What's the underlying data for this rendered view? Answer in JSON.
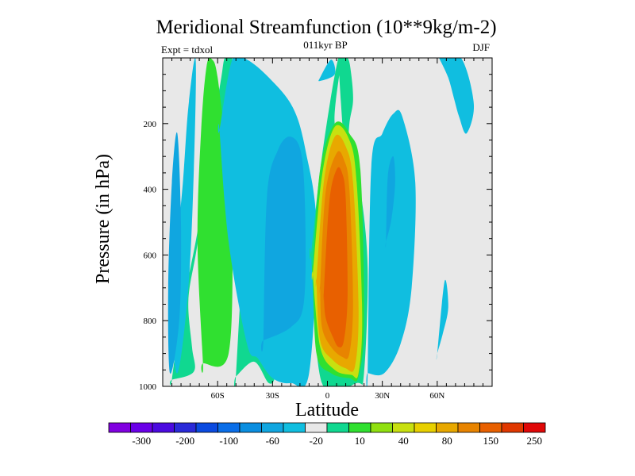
{
  "chart_data": {
    "type": "heatmap",
    "title": "Meridional Streamfunction (10**9kg/m-2)",
    "subtitle_center": "011kyr BP",
    "subtitle_left": "Expt = tdxol",
    "subtitle_right": "DJF",
    "xlabel": "Latitude",
    "ylabel": "Pressure (in hPa)",
    "xlim": [
      -90,
      90
    ],
    "ylim": [
      1000,
      0
    ],
    "y_inverted": true,
    "x_ticks": [
      {
        "value": -60,
        "label": "60S"
      },
      {
        "value": -30,
        "label": "30S"
      },
      {
        "value": 0,
        "label": "0"
      },
      {
        "value": 30,
        "label": "30N"
      },
      {
        "value": 60,
        "label": "60N"
      }
    ],
    "y_ticks": [
      {
        "value": 200,
        "label": "200"
      },
      {
        "value": 400,
        "label": "400"
      },
      {
        "value": 600,
        "label": "600"
      },
      {
        "value": 800,
        "label": "800"
      },
      {
        "value": 1000,
        "label": "1000"
      }
    ],
    "background_color": "#e8e8e8",
    "colorbar": {
      "colors": [
        "#8000e0",
        "#6a00e8",
        "#4b0ae0",
        "#2a2ad8",
        "#0a4ae0",
        "#0a6ee8",
        "#0a8ee0",
        "#10a6e0",
        "#10bee0",
        "#e8e8e8",
        "#10d890",
        "#30e030",
        "#90e010",
        "#c8e010",
        "#e8d000",
        "#e8a800",
        "#e88400",
        "#e86000",
        "#e03800",
        "#e00808"
      ],
      "tick_labels": [
        "-300",
        "-200",
        "-100",
        "-60",
        "-20",
        "10",
        "40",
        "80",
        "150",
        "250"
      ]
    },
    "contour_regions": [
      {
        "level": "10",
        "color": "#10d890",
        "x": [
          -85,
          -73,
          -74,
          -76,
          -72,
          -66,
          -58,
          -54,
          -52,
          -56,
          -58,
          -62,
          -66,
          -72,
          -80,
          -85
        ],
        "y": [
          980,
          955,
          880,
          740,
          600,
          420,
          280,
          150,
          5,
          0,
          60,
          200,
          360,
          560,
          780,
          980
        ]
      },
      {
        "level": "40",
        "color": "#30e030",
        "x": [
          -68,
          -54,
          -52,
          -55,
          -60,
          -63,
          -66,
          -69,
          -71,
          -68
        ],
        "y": [
          930,
          900,
          500,
          300,
          60,
          5,
          25,
          220,
          560,
          930
        ]
      },
      {
        "level": "10",
        "color": "#10d890",
        "x": [
          -50,
          -40,
          -32,
          -28,
          -24,
          -22,
          -27,
          -32,
          -40,
          -45,
          -50
        ],
        "y": [
          970,
          925,
          990,
          960,
          820,
          520,
          330,
          260,
          260,
          500,
          970
        ]
      },
      {
        "level": "-20",
        "color": "#10bee0",
        "x": [
          -86,
          -82,
          -79,
          -76,
          -72,
          -73,
          -76,
          -82,
          -86
        ],
        "y": [
          660,
          540,
          380,
          150,
          5,
          340,
          700,
          960,
          760
        ]
      },
      {
        "level": "-20",
        "color": "#10bee0",
        "x": [
          -59,
          -52,
          -44,
          -32,
          -19,
          -12,
          -6,
          -10,
          -20,
          -30,
          -38,
          -44,
          -54,
          -59
        ],
        "y": [
          220,
          5,
          5,
          60,
          150,
          280,
          520,
          960,
          990,
          975,
          915,
          870,
          560,
          220
        ]
      },
      {
        "level": "-60",
        "color": "#10a6e0",
        "x": [
          -86,
          -81,
          -80,
          -82,
          -85,
          -87
        ],
        "y": [
          960,
          800,
          520,
          230,
          380,
          700
        ]
      },
      {
        "level": "-60",
        "color": "#10a6e0",
        "x": [
          -35,
          -20,
          -13,
          -12,
          -14,
          -20,
          -27,
          -33,
          -35
        ],
        "y": [
          860,
          820,
          750,
          520,
          300,
          240,
          280,
          420,
          860
        ]
      },
      {
        "level": "-20",
        "color": "#10bee0",
        "x": [
          -4,
          2,
          4,
          -4
        ],
        "y": [
          60,
          5,
          50,
          70
        ]
      },
      {
        "level": "10",
        "color": "#10d890",
        "x": [
          -9,
          -3,
          6,
          11,
          13,
          14,
          12,
          10,
          6,
          8,
          7,
          4,
          12,
          18,
          22,
          20,
          16,
          -3,
          -9
        ],
        "y": [
          600,
          300,
          0,
          0,
          50,
          130,
          200,
          320,
          0,
          0,
          30,
          200,
          240,
          400,
          640,
          960,
          990,
          990,
          600
        ]
      },
      {
        "level": "40",
        "color": "#30e030",
        "x": [
          -8,
          -4,
          4,
          12,
          18,
          20,
          17,
          12,
          2,
          -6,
          -8
        ],
        "y": [
          640,
          340,
          200,
          230,
          340,
          800,
          970,
          975,
          960,
          900,
          640
        ]
      },
      {
        "level": "80",
        "color": "#c8e010",
        "x": [
          -8,
          -3,
          4,
          12,
          16,
          19,
          17,
          13,
          4,
          -4,
          -8
        ],
        "y": [
          660,
          360,
          210,
          250,
          380,
          780,
          960,
          965,
          950,
          880,
          660
        ]
      },
      {
        "level": "150",
        "color": "#e8a800",
        "x": [
          -6,
          -2,
          4,
          10,
          14,
          17,
          15,
          10,
          3,
          -4,
          -6
        ],
        "y": [
          680,
          380,
          240,
          270,
          380,
          760,
          940,
          945,
          920,
          860,
          680
        ]
      },
      {
        "level": "200",
        "color": "#e88400",
        "x": [
          -4,
          -1,
          5,
          9,
          12,
          14,
          12,
          8,
          2,
          -3,
          -4
        ],
        "y": [
          700,
          410,
          290,
          310,
          400,
          740,
          900,
          910,
          880,
          820,
          700
        ]
      },
      {
        "level": "250",
        "color": "#e86000",
        "x": [
          -2,
          1,
          5,
          8,
          10,
          11,
          9,
          6,
          3,
          -1,
          -2
        ],
        "y": [
          720,
          440,
          340,
          350,
          430,
          720,
          860,
          880,
          850,
          790,
          720
        ]
      },
      {
        "level": "-20",
        "color": "#10bee0",
        "x": [
          22,
          31,
          40,
          46,
          48,
          41,
          36,
          30,
          24,
          22
        ],
        "y": [
          960,
          960,
          870,
          700,
          380,
          180,
          170,
          230,
          330,
          960
        ]
      },
      {
        "level": "-60",
        "color": "#10a6e0",
        "x": [
          32,
          35,
          37,
          36,
          33,
          32
        ],
        "y": [
          560,
          490,
          380,
          300,
          360,
          560
        ]
      },
      {
        "level": "-20",
        "color": "#10bee0",
        "x": [
          60,
          63,
          66,
          64,
          60
        ],
        "y": [
          900,
          840,
          760,
          680,
          900
        ]
      },
      {
        "level": "-20",
        "color": "#10bee0",
        "x": [
          61,
          73,
          80,
          76,
          72,
          69,
          66,
          61
        ],
        "y": [
          0,
          0,
          140,
          230,
          180,
          120,
          60,
          0
        ]
      }
    ]
  }
}
